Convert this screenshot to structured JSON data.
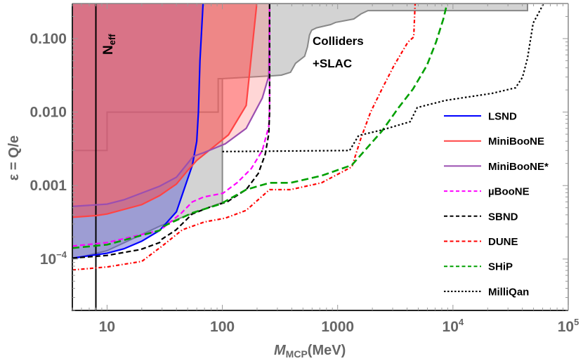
{
  "chart_data": {
    "type": "line",
    "xscale": "log",
    "yscale": "log",
    "xlim": [
      5,
      100000
    ],
    "ylim": [
      2e-05,
      0.3
    ],
    "grid": false,
    "legend_placement": "right",
    "xlabel": {
      "main": "M",
      "sub": "MCP",
      "unit": "(MeV)"
    },
    "ylabel": "ε = Q/e",
    "xticks": [
      {
        "v": 10,
        "label": "10"
      },
      {
        "v": 100,
        "label": "100"
      },
      {
        "v": 1000,
        "label": "1000"
      },
      {
        "v": 10000,
        "label": "10",
        "sup": "4"
      },
      {
        "v": 100000,
        "label": "10",
        "sup": "5"
      }
    ],
    "yticks": [
      {
        "v": 0.1,
        "label": "0.100"
      },
      {
        "v": 0.01,
        "label": "0.010"
      },
      {
        "v": 0.001,
        "label": "0.001"
      },
      {
        "v": 0.0001,
        "label": "10",
        "sup": "−4"
      }
    ],
    "annotations": {
      "neff": {
        "main": "N",
        "sub": "eff",
        "x": 8
      },
      "colliders_line1": "Colliders",
      "colliders_line2": "+SLAC"
    },
    "regions": [
      {
        "id": "colliders-slac",
        "fill": "#d3d3d3",
        "stroke": "#888888",
        "points": [
          [
            5,
            0.0001
          ],
          [
            10,
            0.00013
          ],
          [
            28.6,
            0.00028
          ],
          [
            48.9,
            0.00039
          ],
          [
            100,
            0.00059
          ],
          [
            100,
            0.0285
          ],
          [
            257,
            0.031
          ],
          [
            325,
            0.0318
          ],
          [
            390,
            0.0348
          ],
          [
            431,
            0.046
          ],
          [
            517,
            0.0576
          ],
          [
            547,
            0.0767
          ],
          [
            570,
            0.112
          ],
          [
            595,
            0.13
          ],
          [
            656,
            0.14
          ],
          [
            869,
            0.155
          ],
          [
            959,
            0.166
          ],
          [
            1380,
            0.185
          ],
          [
            1590,
            0.216
          ],
          [
            1830,
            0.24
          ],
          [
            44300,
            0.24
          ],
          [
            44300,
            0.3
          ],
          [
            5,
            0.3
          ]
        ],
        "steps": [
          [
            5,
            0.003
          ],
          [
            10,
            0.003
          ],
          [
            10,
            0.01
          ],
          [
            92,
            0.01
          ],
          [
            92,
            0.0285
          ],
          [
            100,
            0.0285
          ]
        ]
      }
    ],
    "series": [
      {
        "name": "LSND",
        "color": "#0000ff",
        "dash": "solid",
        "fill": "rgba(90,90,210,0.45)",
        "points": [
          [
            5,
            0.000103
          ],
          [
            10,
            0.00012
          ],
          [
            14,
            0.000138
          ],
          [
            20,
            0.000175
          ],
          [
            28.6,
            0.000245
          ],
          [
            40,
            0.00044
          ],
          [
            55,
            0.0019
          ],
          [
            60,
            0.004
          ],
          [
            62,
            0.01
          ],
          [
            64,
            0.05
          ],
          [
            68,
            0.3
          ]
        ]
      },
      {
        "name": "MiniBooNE",
        "color": "#ff4444",
        "dash": "solid",
        "fill": "rgba(255,60,60,0.45)",
        "points": [
          [
            5,
            0.00037
          ],
          [
            8,
            0.00039
          ],
          [
            10,
            0.00041
          ],
          [
            20,
            0.00055
          ],
          [
            28.6,
            0.00073
          ],
          [
            40,
            0.00105
          ],
          [
            50,
            0.0016
          ],
          [
            60,
            0.0022
          ],
          [
            113,
            0.0049
          ],
          [
            161,
            0.0123
          ],
          [
            199,
            0.3
          ]
        ]
      },
      {
        "name": "MiniBooNE*",
        "color": "#9b4fb0",
        "dash": "solid",
        "fill": "rgba(255,120,120,0.3)",
        "points": [
          [
            5,
            0.00052
          ],
          [
            10,
            0.00056
          ],
          [
            14,
            0.00064
          ],
          [
            28.6,
            0.00098
          ],
          [
            40,
            0.0013
          ],
          [
            56,
            0.0025
          ],
          [
            69,
            0.0028
          ],
          [
            106,
            0.0037
          ],
          [
            161,
            0.006
          ],
          [
            222,
            0.0155
          ],
          [
            253,
            0.031
          ],
          [
            257,
            0.3
          ]
        ]
      },
      {
        "name": "µBooNE",
        "color": "#ff00ff",
        "dash": "dashed",
        "points": [
          [
            5,
            0.00015
          ],
          [
            10,
            0.000168
          ],
          [
            28.6,
            0.000245
          ],
          [
            31,
            0.00027
          ],
          [
            44,
            0.00042
          ],
          [
            55,
            0.0006
          ],
          [
            69,
            0.0007
          ],
          [
            101,
            0.000785
          ],
          [
            134,
            0.00109
          ],
          [
            178,
            0.0017
          ],
          [
            222,
            0.003
          ],
          [
            253,
            0.0064
          ],
          [
            257,
            0.012
          ],
          [
            257,
            0.3
          ]
        ]
      },
      {
        "name": "SBND",
        "color": "#000000",
        "dash": "dashed",
        "points": [
          [
            5,
            0.000103
          ],
          [
            10,
            0.000112
          ],
          [
            19.6,
            0.000135
          ],
          [
            28.6,
            0.000168
          ],
          [
            30,
            0.000187
          ],
          [
            39.6,
            0.000249
          ],
          [
            54.7,
            0.00041
          ],
          [
            76.6,
            0.000505
          ],
          [
            110,
            0.0006
          ],
          [
            161,
            0.00088
          ],
          [
            205,
            0.00146
          ],
          [
            235,
            0.00264
          ],
          [
            253,
            0.0051
          ],
          [
            257,
            0.01
          ],
          [
            257,
            0.3
          ]
        ]
      },
      {
        "name": "DUNE",
        "color": "#ff0000",
        "dash": "dashdot",
        "points": [
          [
            5,
            7.1e-05
          ],
          [
            10,
            7.8e-05
          ],
          [
            20,
            9.3e-05
          ],
          [
            30,
            0.00015
          ],
          [
            45,
            0.00025
          ],
          [
            70,
            0.00032
          ],
          [
            106,
            0.00036
          ],
          [
            161,
            0.00046
          ],
          [
            257,
            0.00088
          ],
          [
            390,
            0.00088
          ],
          [
            724,
            0.00109
          ],
          [
            1330,
            0.0018
          ],
          [
            1590,
            0.0044
          ],
          [
            1930,
            0.01
          ],
          [
            2420,
            0.0205
          ],
          [
            3090,
            0.0433
          ],
          [
            4070,
            0.0896
          ],
          [
            4570,
            0.105
          ],
          [
            4700,
            0.3
          ]
        ]
      },
      {
        "name": "SHiP",
        "color": "#00a000",
        "dash": "longdash",
        "points": [
          [
            5,
            0.000141
          ],
          [
            10,
            0.000157
          ],
          [
            28.6,
            0.000245
          ],
          [
            31,
            0.00028
          ],
          [
            54.7,
            0.000424
          ],
          [
            96,
            0.00056
          ],
          [
            161,
            0.00088
          ],
          [
            257,
            0.00109
          ],
          [
            390,
            0.00109
          ],
          [
            724,
            0.00136
          ],
          [
            1330,
            0.0019
          ],
          [
            2420,
            0.0055
          ],
          [
            3380,
            0.0115
          ],
          [
            4500,
            0.0205
          ],
          [
            5950,
            0.0433
          ],
          [
            7140,
            0.0896
          ],
          [
            8260,
            0.185
          ],
          [
            8900,
            0.3
          ]
        ]
      },
      {
        "name": "MilliQan",
        "color": "#000000",
        "dash": "dotted",
        "points": [
          [
            100,
            0.0029
          ],
          [
            1270,
            0.003
          ],
          [
            1520,
            0.0048
          ],
          [
            2420,
            0.0057
          ],
          [
            4250,
            0.0074
          ],
          [
            4900,
            0.0115
          ],
          [
            8570,
            0.0144
          ],
          [
            21900,
            0.018
          ],
          [
            34900,
            0.0214
          ],
          [
            40100,
            0.0298
          ],
          [
            44300,
            0.054
          ],
          [
            49600,
            0.162
          ],
          [
            61200,
            0.3
          ]
        ]
      }
    ]
  }
}
